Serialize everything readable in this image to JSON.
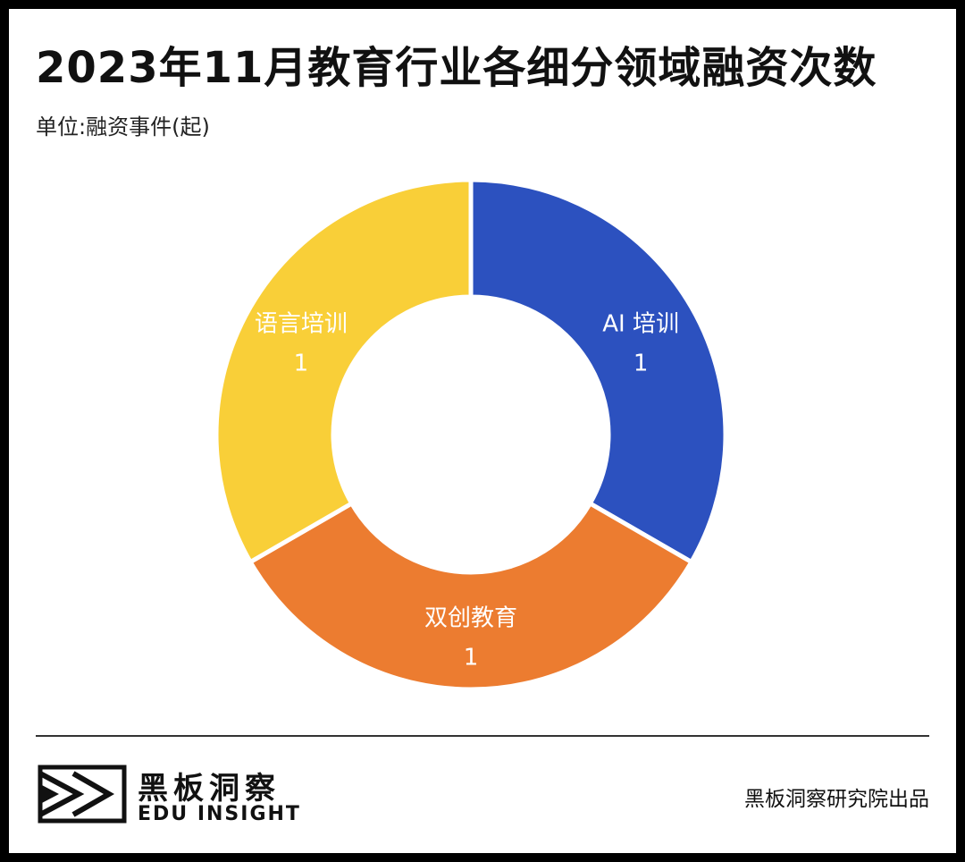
{
  "header": {
    "title": "2023年11月教育行业各细分领域融资次数",
    "unit": "单位:融资事件(起)"
  },
  "chart_data": {
    "type": "pie",
    "title": "2023年11月教育行业各细分领域融资次数",
    "unit": "单位:融资事件(起)",
    "categories": [
      "AI 培训",
      "双创教育",
      "语言培训"
    ],
    "values": [
      1,
      1,
      1
    ],
    "colors": [
      "#2c51bf",
      "#ec7c30",
      "#f9cf38"
    ],
    "donut": true
  },
  "footer": {
    "brand_cn": "黑板洞察",
    "brand_en": "EDU INSIGHT",
    "credit": "黑板洞察研究院出品"
  }
}
